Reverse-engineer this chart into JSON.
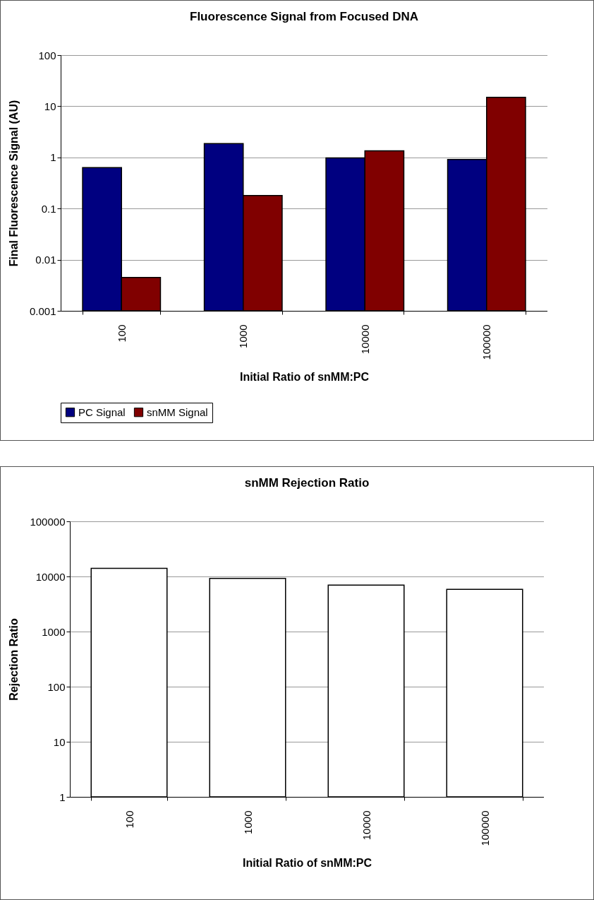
{
  "chart_data": [
    {
      "type": "bar",
      "title": "Fluorescence Signal from Focused DNA",
      "xlabel": "Initial Ratio of snMM:PC",
      "ylabel": "Final Fluorescence Signal (AU)",
      "categories": [
        "100",
        "1000",
        "10000",
        "100000"
      ],
      "series": [
        {
          "name": "PC Signal",
          "color": "#000080",
          "values": [
            0.63,
            1.86,
            0.98,
            0.91
          ]
        },
        {
          "name": "snMM Signal",
          "color": "#800000",
          "values": [
            0.0045,
            0.18,
            1.34,
            15
          ]
        }
      ],
      "log": true,
      "ylim": [
        0.001,
        100
      ],
      "yticks": [
        0.001,
        0.01,
        0.1,
        1,
        10,
        100
      ],
      "grid": "y",
      "legend": "bottom"
    },
    {
      "type": "bar",
      "title": "snMM Rejection Ratio",
      "xlabel": "Initial Ratio of snMM:PC",
      "ylabel": "Rejection Ratio",
      "categories": [
        "100",
        "1000",
        "10000",
        "100000"
      ],
      "values": [
        14000,
        9200,
        6950,
        5850
      ],
      "color": "#ffffff",
      "log": true,
      "ylim": [
        1,
        100000
      ],
      "yticks": [
        1,
        10,
        100,
        1000,
        10000,
        100000
      ],
      "grid": "y"
    }
  ]
}
